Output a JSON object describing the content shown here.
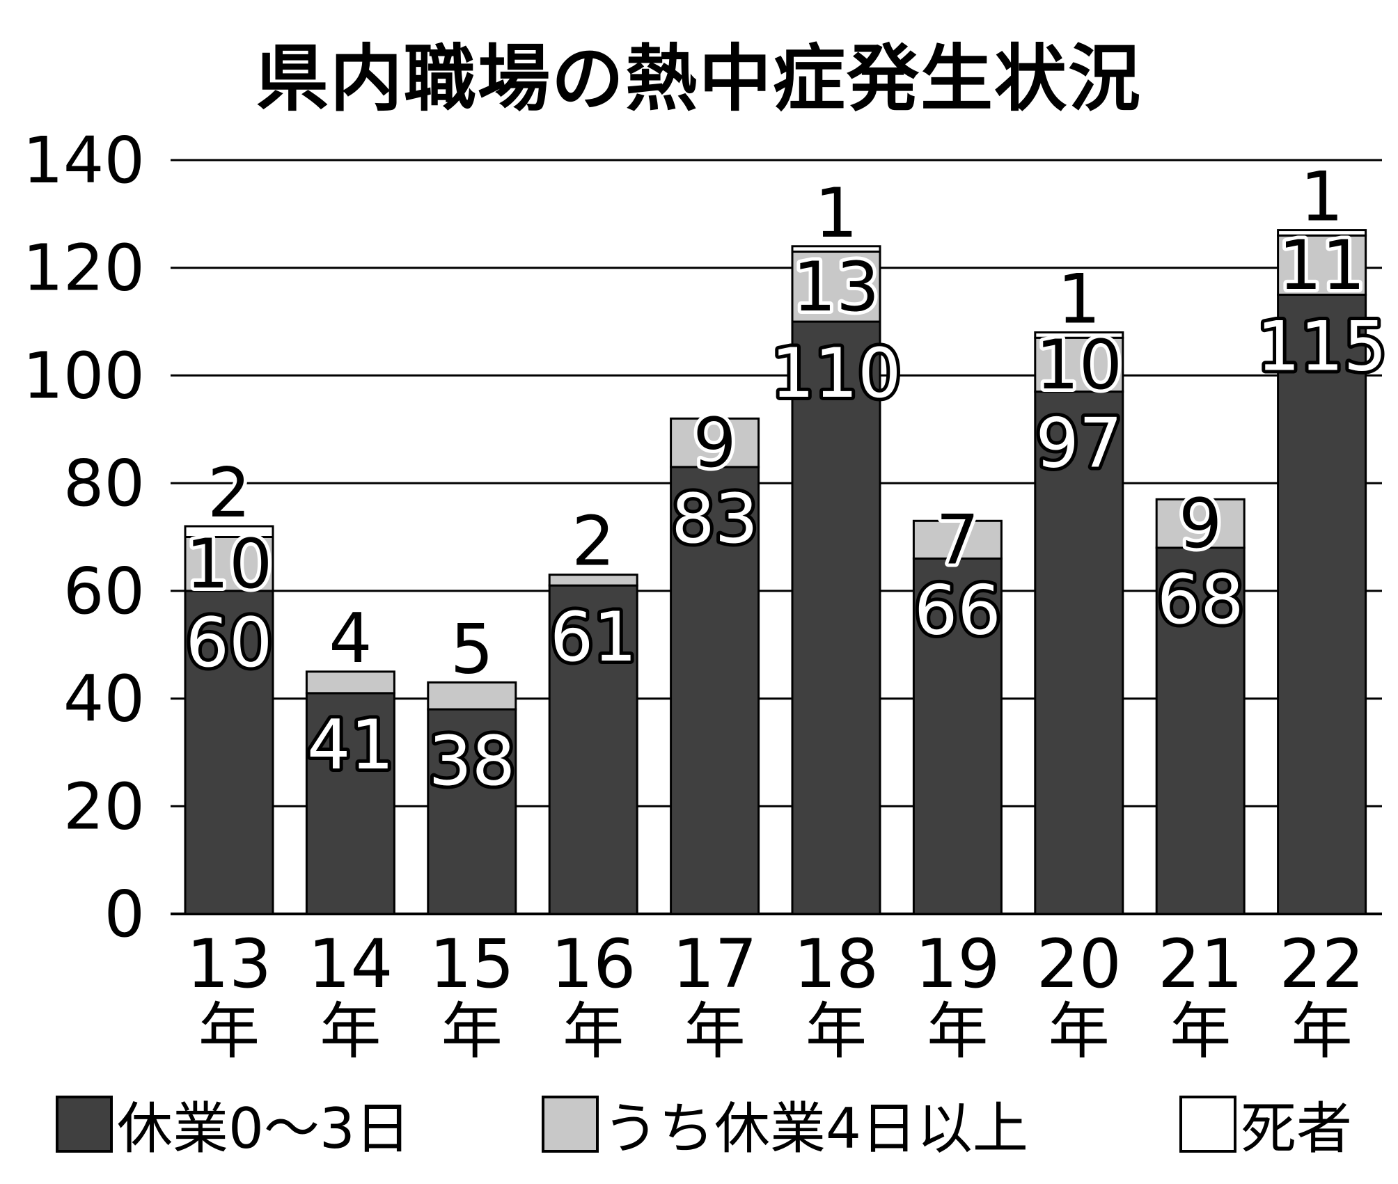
{
  "chart_data": {
    "type": "bar",
    "stacked": true,
    "title": "県内職場の熱中症発生状況",
    "categories": [
      "13\n年",
      "14\n年",
      "15\n年",
      "16\n年",
      "17\n年",
      "18\n年",
      "19\n年",
      "20\n年",
      "21\n年",
      "22\n年"
    ],
    "category_lines": [
      [
        "13",
        "年"
      ],
      [
        "14",
        "年"
      ],
      [
        "15",
        "年"
      ],
      [
        "16",
        "年"
      ],
      [
        "17",
        "年"
      ],
      [
        "18",
        "年"
      ],
      [
        "19",
        "年"
      ],
      [
        "20",
        "年"
      ],
      [
        "21",
        "年"
      ],
      [
        "22",
        "年"
      ]
    ],
    "series": [
      {
        "name": "休業0〜3日",
        "color": "#404040",
        "values": [
          60,
          41,
          38,
          61,
          83,
          110,
          66,
          97,
          68,
          115
        ]
      },
      {
        "name": "うち休業4日以上",
        "color": "#c8c8c8",
        "values": [
          10,
          4,
          5,
          2,
          9,
          13,
          7,
          10,
          9,
          11
        ]
      },
      {
        "name": "死者",
        "color": "#ffffff",
        "values": [
          2,
          0,
          0,
          0,
          0,
          1,
          0,
          1,
          0,
          1
        ]
      }
    ],
    "ylim": [
      0,
      140
    ],
    "yticks": [
      0,
      20,
      40,
      60,
      80,
      100,
      120,
      140
    ],
    "xlabel": "",
    "ylabel": "",
    "grid": true,
    "legend_position": "bottom"
  }
}
